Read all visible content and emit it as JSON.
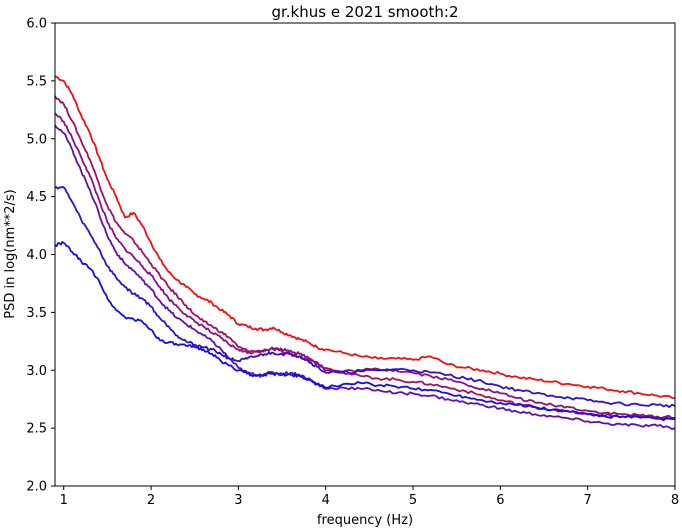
{
  "chart_data": {
    "type": "line",
    "title": "gr.khus e 2021 smooth:2",
    "xlabel": "frequency (Hz)",
    "ylabel": "PSD in log(nm**2/s)",
    "xlim": [
      0.9,
      8
    ],
    "ylim": [
      2.0,
      6.0
    ],
    "xticks": [
      1,
      2,
      3,
      4,
      5,
      6,
      7,
      8
    ],
    "yticks": [
      2.0,
      2.5,
      3.0,
      3.5,
      4.0,
      4.5,
      5.0,
      5.5,
      6.0
    ],
    "grid": false,
    "legend": "none",
    "series": [
      {
        "color": "#ee1111",
        "points": [
          [
            0.9,
            5.54
          ],
          [
            1.0,
            5.5
          ],
          [
            1.1,
            5.38
          ],
          [
            1.2,
            5.2
          ],
          [
            1.3,
            5.05
          ],
          [
            1.4,
            4.85
          ],
          [
            1.5,
            4.65
          ],
          [
            1.6,
            4.5
          ],
          [
            1.7,
            4.32
          ],
          [
            1.8,
            4.36
          ],
          [
            1.9,
            4.25
          ],
          [
            2.0,
            4.1
          ],
          [
            2.1,
            3.96
          ],
          [
            2.2,
            3.85
          ],
          [
            2.3,
            3.78
          ],
          [
            2.4,
            3.72
          ],
          [
            2.5,
            3.66
          ],
          [
            2.6,
            3.62
          ],
          [
            2.7,
            3.58
          ],
          [
            2.8,
            3.52
          ],
          [
            2.9,
            3.47
          ],
          [
            3.0,
            3.4
          ],
          [
            3.1,
            3.38
          ],
          [
            3.2,
            3.36
          ],
          [
            3.3,
            3.35
          ],
          [
            3.4,
            3.37
          ],
          [
            3.5,
            3.33
          ],
          [
            3.6,
            3.3
          ],
          [
            3.7,
            3.27
          ],
          [
            3.8,
            3.24
          ],
          [
            3.9,
            3.2
          ],
          [
            4.0,
            3.18
          ],
          [
            4.2,
            3.15
          ],
          [
            4.4,
            3.12
          ],
          [
            4.6,
            3.1
          ],
          [
            4.8,
            3.1
          ],
          [
            5.0,
            3.09
          ],
          [
            5.2,
            3.12
          ],
          [
            5.4,
            3.05
          ],
          [
            5.6,
            3.02
          ],
          [
            5.8,
            3.0
          ],
          [
            6.0,
            2.97
          ],
          [
            6.2,
            2.94
          ],
          [
            6.4,
            2.92
          ],
          [
            6.6,
            2.9
          ],
          [
            6.8,
            2.88
          ],
          [
            7.0,
            2.86
          ],
          [
            7.2,
            2.84
          ],
          [
            7.4,
            2.82
          ],
          [
            7.6,
            2.8
          ],
          [
            7.8,
            2.78
          ],
          [
            8.0,
            2.76
          ]
        ]
      },
      {
        "color": "#a01060",
        "points": [
          [
            0.9,
            5.37
          ],
          [
            1.0,
            5.3
          ],
          [
            1.1,
            5.15
          ],
          [
            1.2,
            4.98
          ],
          [
            1.3,
            4.82
          ],
          [
            1.4,
            4.62
          ],
          [
            1.5,
            4.42
          ],
          [
            1.6,
            4.28
          ],
          [
            1.7,
            4.18
          ],
          [
            1.8,
            4.12
          ],
          [
            1.9,
            4.02
          ],
          [
            2.0,
            3.92
          ],
          [
            2.1,
            3.82
          ],
          [
            2.2,
            3.72
          ],
          [
            2.3,
            3.64
          ],
          [
            2.4,
            3.56
          ],
          [
            2.5,
            3.48
          ],
          [
            2.6,
            3.42
          ],
          [
            2.7,
            3.38
          ],
          [
            2.8,
            3.33
          ],
          [
            2.9,
            3.28
          ],
          [
            3.0,
            3.2
          ],
          [
            3.1,
            3.17
          ],
          [
            3.2,
            3.16
          ],
          [
            3.3,
            3.17
          ],
          [
            3.4,
            3.18
          ],
          [
            3.5,
            3.16
          ],
          [
            3.6,
            3.14
          ],
          [
            3.7,
            3.12
          ],
          [
            3.8,
            3.1
          ],
          [
            3.9,
            3.06
          ],
          [
            4.0,
            3.02
          ],
          [
            4.2,
            2.98
          ],
          [
            4.4,
            2.95
          ],
          [
            4.6,
            2.93
          ],
          [
            4.8,
            2.92
          ],
          [
            5.0,
            2.9
          ],
          [
            5.2,
            2.88
          ],
          [
            5.4,
            2.85
          ],
          [
            5.6,
            2.82
          ],
          [
            5.8,
            2.78
          ],
          [
            6.0,
            2.74
          ],
          [
            6.2,
            2.71
          ],
          [
            6.4,
            2.68
          ],
          [
            6.6,
            2.66
          ],
          [
            6.8,
            2.64
          ],
          [
            7.0,
            2.62
          ],
          [
            7.2,
            2.61
          ],
          [
            7.4,
            2.6
          ],
          [
            7.6,
            2.6
          ],
          [
            7.8,
            2.59
          ],
          [
            8.0,
            2.58
          ]
        ]
      },
      {
        "color": "#8a1088",
        "points": [
          [
            0.9,
            5.22
          ],
          [
            1.0,
            5.15
          ],
          [
            1.1,
            5.0
          ],
          [
            1.2,
            4.84
          ],
          [
            1.3,
            4.68
          ],
          [
            1.4,
            4.48
          ],
          [
            1.5,
            4.28
          ],
          [
            1.6,
            4.14
          ],
          [
            1.7,
            4.05
          ],
          [
            1.8,
            3.98
          ],
          [
            1.9,
            3.9
          ],
          [
            2.0,
            3.82
          ],
          [
            2.1,
            3.72
          ],
          [
            2.2,
            3.62
          ],
          [
            2.3,
            3.55
          ],
          [
            2.4,
            3.48
          ],
          [
            2.5,
            3.42
          ],
          [
            2.6,
            3.38
          ],
          [
            2.7,
            3.32
          ],
          [
            2.8,
            3.28
          ],
          [
            2.9,
            3.22
          ],
          [
            3.0,
            3.18
          ],
          [
            3.1,
            3.15
          ],
          [
            3.2,
            3.16
          ],
          [
            3.3,
            3.18
          ],
          [
            3.4,
            3.19
          ],
          [
            3.5,
            3.18
          ],
          [
            3.6,
            3.17
          ],
          [
            3.7,
            3.14
          ],
          [
            3.8,
            3.11
          ],
          [
            3.9,
            3.07
          ],
          [
            4.0,
            3.0
          ],
          [
            4.2,
            2.99
          ],
          [
            4.4,
            3.0
          ],
          [
            4.6,
            3.01
          ],
          [
            4.8,
            3.0
          ],
          [
            5.0,
            2.98
          ],
          [
            5.2,
            2.95
          ],
          [
            5.4,
            2.92
          ],
          [
            5.6,
            2.88
          ],
          [
            5.8,
            2.84
          ],
          [
            6.0,
            2.8
          ],
          [
            6.2,
            2.76
          ],
          [
            6.4,
            2.72
          ],
          [
            6.6,
            2.7
          ],
          [
            6.8,
            2.68
          ],
          [
            7.0,
            2.65
          ],
          [
            7.2,
            2.63
          ],
          [
            7.4,
            2.62
          ],
          [
            7.6,
            2.61
          ],
          [
            7.8,
            2.6
          ],
          [
            8.0,
            2.59
          ]
        ]
      },
      {
        "color": "#6010a8",
        "points": [
          [
            0.9,
            5.12
          ],
          [
            1.0,
            5.05
          ],
          [
            1.1,
            4.9
          ],
          [
            1.2,
            4.72
          ],
          [
            1.3,
            4.56
          ],
          [
            1.4,
            4.36
          ],
          [
            1.5,
            4.16
          ],
          [
            1.6,
            4.02
          ],
          [
            1.7,
            3.92
          ],
          [
            1.8,
            3.86
          ],
          [
            1.9,
            3.78
          ],
          [
            2.0,
            3.7
          ],
          [
            2.1,
            3.6
          ],
          [
            2.2,
            3.52
          ],
          [
            2.3,
            3.45
          ],
          [
            2.4,
            3.4
          ],
          [
            2.5,
            3.35
          ],
          [
            2.6,
            3.3
          ],
          [
            2.7,
            3.25
          ],
          [
            2.8,
            3.18
          ],
          [
            2.9,
            3.1
          ],
          [
            3.0,
            3.02
          ],
          [
            3.1,
            2.98
          ],
          [
            3.2,
            2.96
          ],
          [
            3.3,
            2.97
          ],
          [
            3.4,
            2.98
          ],
          [
            3.5,
            2.97
          ],
          [
            3.6,
            2.98
          ],
          [
            3.7,
            2.96
          ],
          [
            3.8,
            2.93
          ],
          [
            3.9,
            2.88
          ],
          [
            4.0,
            2.84
          ],
          [
            4.2,
            2.85
          ],
          [
            4.4,
            2.84
          ],
          [
            4.6,
            2.83
          ],
          [
            4.8,
            2.8
          ],
          [
            5.0,
            2.8
          ],
          [
            5.2,
            2.78
          ],
          [
            5.4,
            2.75
          ],
          [
            5.6,
            2.72
          ],
          [
            5.8,
            2.7
          ],
          [
            6.0,
            2.67
          ],
          [
            6.2,
            2.64
          ],
          [
            6.4,
            2.62
          ],
          [
            6.6,
            2.6
          ],
          [
            6.8,
            2.58
          ],
          [
            7.0,
            2.56
          ],
          [
            7.2,
            2.54
          ],
          [
            7.4,
            2.53
          ],
          [
            7.6,
            2.52
          ],
          [
            7.8,
            2.52
          ],
          [
            8.0,
            2.5
          ]
        ]
      },
      {
        "color": "#3010c8",
        "points": [
          [
            0.9,
            4.58
          ],
          [
            1.0,
            4.58
          ],
          [
            1.1,
            4.45
          ],
          [
            1.2,
            4.3
          ],
          [
            1.3,
            4.18
          ],
          [
            1.4,
            4.05
          ],
          [
            1.5,
            3.9
          ],
          [
            1.6,
            3.8
          ],
          [
            1.7,
            3.72
          ],
          [
            1.8,
            3.66
          ],
          [
            1.9,
            3.62
          ],
          [
            2.0,
            3.55
          ],
          [
            2.1,
            3.45
          ],
          [
            2.2,
            3.38
          ],
          [
            2.3,
            3.3
          ],
          [
            2.4,
            3.25
          ],
          [
            2.5,
            3.22
          ],
          [
            2.6,
            3.2
          ],
          [
            2.7,
            3.18
          ],
          [
            2.8,
            3.14
          ],
          [
            2.9,
            3.1
          ],
          [
            3.0,
            3.08
          ],
          [
            3.1,
            3.1
          ],
          [
            3.2,
            3.12
          ],
          [
            3.3,
            3.14
          ],
          [
            3.4,
            3.15
          ],
          [
            3.5,
            3.14
          ],
          [
            3.6,
            3.14
          ],
          [
            3.7,
            3.12
          ],
          [
            3.8,
            3.08
          ],
          [
            3.9,
            3.03
          ],
          [
            4.0,
            2.98
          ],
          [
            4.2,
            2.98
          ],
          [
            4.4,
            2.99
          ],
          [
            4.6,
            3.0
          ],
          [
            4.8,
            3.01
          ],
          [
            5.0,
            3.0
          ],
          [
            5.2,
            2.98
          ],
          [
            5.4,
            2.96
          ],
          [
            5.6,
            2.93
          ],
          [
            5.8,
            2.9
          ],
          [
            6.0,
            2.86
          ],
          [
            6.2,
            2.83
          ],
          [
            6.4,
            2.8
          ],
          [
            6.6,
            2.78
          ],
          [
            6.8,
            2.76
          ],
          [
            7.0,
            2.74
          ],
          [
            7.2,
            2.72
          ],
          [
            7.4,
            2.71
          ],
          [
            7.6,
            2.7
          ],
          [
            7.8,
            2.7
          ],
          [
            8.0,
            2.69
          ]
        ]
      },
      {
        "color": "#1010e0",
        "points": [
          [
            0.9,
            4.08
          ],
          [
            1.0,
            4.1
          ],
          [
            1.1,
            4.02
          ],
          [
            1.2,
            3.94
          ],
          [
            1.3,
            3.88
          ],
          [
            1.4,
            3.78
          ],
          [
            1.5,
            3.62
          ],
          [
            1.6,
            3.52
          ],
          [
            1.7,
            3.46
          ],
          [
            1.8,
            3.44
          ],
          [
            1.9,
            3.42
          ],
          [
            2.0,
            3.35
          ],
          [
            2.1,
            3.26
          ],
          [
            2.2,
            3.24
          ],
          [
            2.3,
            3.22
          ],
          [
            2.4,
            3.21
          ],
          [
            2.5,
            3.2
          ],
          [
            2.6,
            3.18
          ],
          [
            2.7,
            3.14
          ],
          [
            2.8,
            3.08
          ],
          [
            2.9,
            3.04
          ],
          [
            3.0,
            3.0
          ],
          [
            3.1,
            2.97
          ],
          [
            3.2,
            2.95
          ],
          [
            3.3,
            2.96
          ],
          [
            3.4,
            2.97
          ],
          [
            3.5,
            2.96
          ],
          [
            3.6,
            2.96
          ],
          [
            3.7,
            2.95
          ],
          [
            3.8,
            2.92
          ],
          [
            3.9,
            2.88
          ],
          [
            4.0,
            2.85
          ],
          [
            4.2,
            2.88
          ],
          [
            4.4,
            2.89
          ],
          [
            4.6,
            2.87
          ],
          [
            4.8,
            2.86
          ],
          [
            5.0,
            2.84
          ],
          [
            5.2,
            2.83
          ],
          [
            5.4,
            2.8
          ],
          [
            5.6,
            2.77
          ],
          [
            5.8,
            2.74
          ],
          [
            6.0,
            2.72
          ],
          [
            6.2,
            2.7
          ],
          [
            6.4,
            2.68
          ],
          [
            6.6,
            2.66
          ],
          [
            6.8,
            2.64
          ],
          [
            7.0,
            2.62
          ],
          [
            7.2,
            2.6
          ],
          [
            7.4,
            2.6
          ],
          [
            7.6,
            2.59
          ],
          [
            7.8,
            2.58
          ],
          [
            8.0,
            2.58
          ]
        ]
      }
    ]
  }
}
